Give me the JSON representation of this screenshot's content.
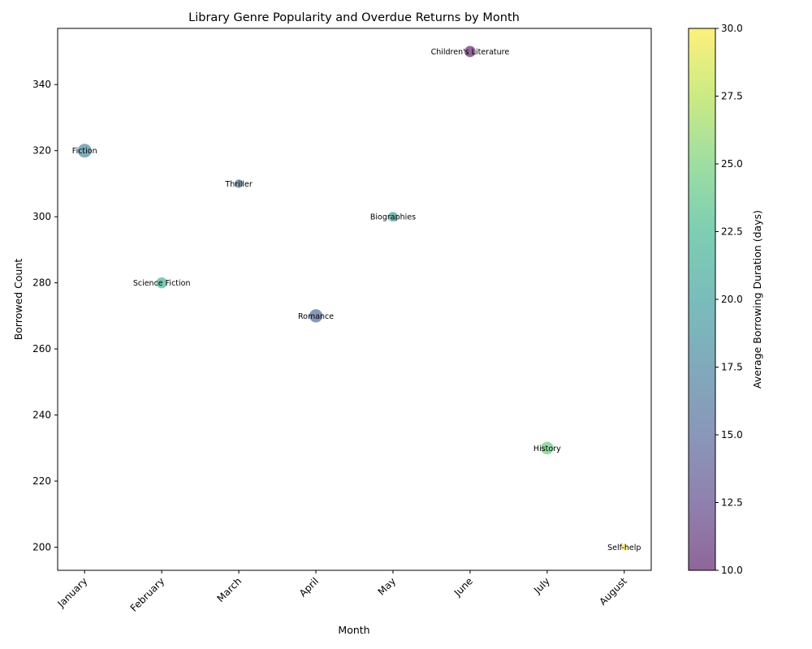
{
  "chart_data": {
    "type": "scatter",
    "title": "Library Genre Popularity and Overdue Returns by Month",
    "xlabel": "Month",
    "ylabel": "Borrowed Count",
    "categories": [
      "January",
      "February",
      "March",
      "April",
      "May",
      "June",
      "July",
      "August"
    ],
    "ylim": [
      193,
      357
    ],
    "yticks": [
      200,
      220,
      240,
      260,
      280,
      300,
      320,
      340
    ],
    "grid": false,
    "points": [
      {
        "x": "January",
        "y": 320,
        "label": "Fiction",
        "color_value": 18,
        "size_value": 140
      },
      {
        "x": "February",
        "y": 280,
        "label": "Science Fiction",
        "color_value": 22,
        "size_value": 90
      },
      {
        "x": "March",
        "y": 310,
        "label": "Thriller",
        "color_value": 16,
        "size_value": 55
      },
      {
        "x": "April",
        "y": 270,
        "label": "Romance",
        "color_value": 15,
        "size_value": 130
      },
      {
        "x": "May",
        "y": 300,
        "label": "Biographies",
        "color_value": 20,
        "size_value": 70
      },
      {
        "x": "June",
        "y": 350,
        "label": "Children's Literature",
        "color_value": 10,
        "size_value": 95
      },
      {
        "x": "July",
        "y": 230,
        "label": "History",
        "color_value": 24.5,
        "size_value": 120
      },
      {
        "x": "August",
        "y": 200,
        "label": "Self-help",
        "color_value": 30,
        "size_value": 35
      }
    ],
    "colorbar": {
      "label": "Average Borrowing Duration (days)",
      "range": [
        10,
        30
      ],
      "ticks": [
        "10.0",
        "12.5",
        "15.0",
        "17.5",
        "20.0",
        "22.5",
        "25.0",
        "27.5",
        "30.0"
      ],
      "colormap": "viridis",
      "alpha": 0.6
    }
  }
}
